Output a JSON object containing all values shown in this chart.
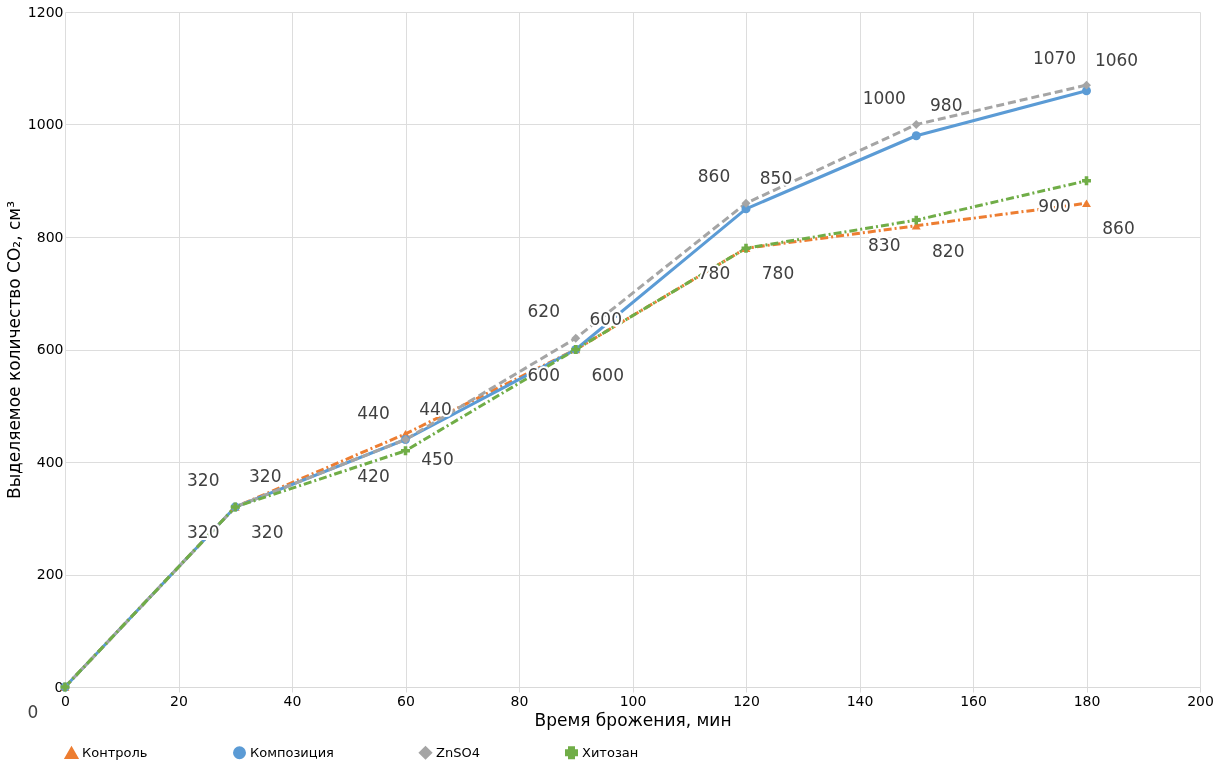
{
  "chart_data": {
    "type": "line",
    "xlabel": "Время брожения, мин",
    "ylabel": "Выделяемое количество CO₂, см³",
    "x": [
      0,
      30,
      60,
      90,
      120,
      150,
      180
    ],
    "xlim": [
      0,
      200
    ],
    "xticks": [
      0,
      20,
      40,
      60,
      80,
      100,
      120,
      140,
      160,
      180,
      200
    ],
    "ylim": [
      0,
      1200
    ],
    "yticks": [
      0,
      200,
      400,
      600,
      800,
      1000,
      1200
    ],
    "grid": true,
    "legend": "bottom",
    "series": [
      {
        "name": "Контроль",
        "color": "#ed7d31",
        "marker": "triangle",
        "line_style": "dashdot",
        "values": [
          0,
          320,
          450,
          600,
          780,
          820,
          860
        ],
        "value_labels": [
          null,
          "320",
          "450",
          "600",
          "780",
          "820",
          "860"
        ]
      },
      {
        "name": "Композиция",
        "color": "#5b9bd5",
        "marker": "circle",
        "line_style": "solid",
        "values": [
          0,
          320,
          440,
          600,
          850,
          980,
          1060
        ],
        "value_labels": [
          null,
          "320",
          "440",
          "600",
          "850",
          "980",
          "1060"
        ]
      },
      {
        "name": "ZnSO4",
        "color": "#a5a5a5",
        "marker": "diamond",
        "line_style": "dashed",
        "values": [
          0,
          320,
          440,
          620,
          860,
          1000,
          1070
        ],
        "value_labels": [
          null,
          "320",
          "440",
          "620",
          "860",
          "1000",
          "1070"
        ]
      },
      {
        "name": "Хитозан",
        "color": "#70ad47",
        "marker": "cross",
        "line_style": "dashdot",
        "values": [
          0,
          320,
          420,
          600,
          780,
          830,
          900
        ],
        "value_labels": [
          "0",
          "320",
          "420",
          "600",
          "780",
          "830",
          "900"
        ]
      }
    ]
  }
}
